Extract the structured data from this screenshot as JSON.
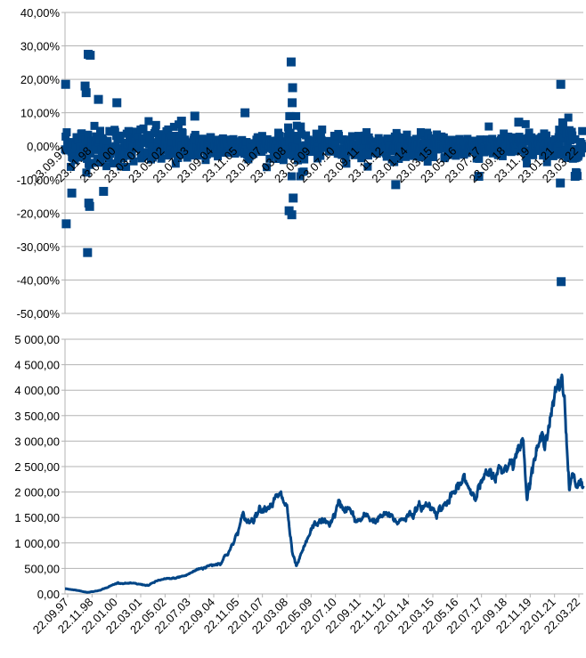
{
  "colors": {
    "series": "#004586",
    "grid": "#b3b3b3",
    "axis": "#b3b3b3",
    "text": "#000000"
  },
  "chart_data": [
    {
      "type": "scatter",
      "title": "",
      "xlabel": "",
      "ylabel": "",
      "ylim": [
        -0.5,
        0.4
      ],
      "grid": true,
      "legend": "none",
      "y_tick_values": [
        0.4,
        0.3,
        0.2,
        0.1,
        0.0,
        -0.1,
        -0.2,
        -0.3,
        -0.4,
        -0.5
      ],
      "y_tick_labels": [
        "40,00%",
        "30,00%",
        "20,00%",
        "10,00%",
        "0,00%",
        "-10,00%",
        "-20,00%",
        "-30,00%",
        "-40,00%",
        "-50,00%"
      ],
      "x_tick_labels": [
        "23.09.97",
        "23.11.98",
        "23.01.00",
        "23.03.01",
        "23.05.02",
        "23.07.03",
        "23.09.04",
        "23.11.05",
        "23.01.07",
        "23.03.08",
        "23.05.09",
        "23.07.10",
        "23.09.11",
        "23.11.12",
        "23.01.14",
        "23.03.15",
        "23.05.16",
        "23.07.17",
        "23.09.18",
        "23.11.19",
        "23.01.21",
        "23.03.22"
      ],
      "x_range_years": [
        1997.72,
        2023.0
      ],
      "outliers": [
        {
          "x": 1997.75,
          "y": 0.185
        },
        {
          "x": 1997.78,
          "y": -0.232
        },
        {
          "x": 1998.05,
          "y": -0.14
        },
        {
          "x": 1998.7,
          "y": 0.18
        },
        {
          "x": 1998.75,
          "y": 0.16
        },
        {
          "x": 1998.85,
          "y": 0.275
        },
        {
          "x": 1998.95,
          "y": 0.272
        },
        {
          "x": 1998.82,
          "y": -0.318
        },
        {
          "x": 1998.88,
          "y": -0.17
        },
        {
          "x": 1998.92,
          "y": -0.18
        },
        {
          "x": 1999.35,
          "y": 0.14
        },
        {
          "x": 1999.6,
          "y": -0.135
        },
        {
          "x": 2000.25,
          "y": 0.13
        },
        {
          "x": 2004.05,
          "y": 0.09
        },
        {
          "x": 2003.4,
          "y": 0.075
        },
        {
          "x": 2006.5,
          "y": 0.1
        },
        {
          "x": 2008.75,
          "y": 0.252
        },
        {
          "x": 2008.82,
          "y": 0.175
        },
        {
          "x": 2008.8,
          "y": 0.13
        },
        {
          "x": 2008.65,
          "y": -0.193
        },
        {
          "x": 2008.78,
          "y": -0.205
        },
        {
          "x": 2008.85,
          "y": -0.155
        },
        {
          "x": 2013.85,
          "y": -0.115
        },
        {
          "x": 2017.9,
          "y": -0.09
        },
        {
          "x": 2019.85,
          "y": 0.072
        },
        {
          "x": 2021.9,
          "y": 0.185
        },
        {
          "x": 2021.92,
          "y": -0.405
        },
        {
          "x": 2021.88,
          "y": -0.11
        },
        {
          "x": 2022.0,
          "y": 0.07
        },
        {
          "x": 2022.6,
          "y": -0.09
        }
      ]
    },
    {
      "type": "line",
      "title": "",
      "xlabel": "",
      "ylabel": "",
      "ylim": [
        0,
        5000
      ],
      "grid": true,
      "legend": "none",
      "y_tick_values": [
        5000,
        4500,
        4000,
        3500,
        3000,
        2500,
        2000,
        1500,
        1000,
        500,
        0
      ],
      "y_tick_labels": [
        "5 000,00",
        "4 500,00",
        "4 000,00",
        "3 500,00",
        "3 000,00",
        "2 500,00",
        "2 000,00",
        "1 500,00",
        "1 000,00",
        "500,00",
        "0,00"
      ],
      "x_tick_labels": [
        "22.09.97",
        "22.11.98",
        "22.01.00",
        "22.03.01",
        "22.05.02",
        "22.07.03",
        "22.09.04",
        "22.11.05",
        "22.01.07",
        "22.03.08",
        "22.05.09",
        "22.07.10",
        "22.09.11",
        "22.11.12",
        "22.01.14",
        "22.03.15",
        "22.05.16",
        "22.07.17",
        "22.09.18",
        "22.11.19",
        "22.01.21",
        "22.03.22"
      ],
      "x_range_years": [
        1997.72,
        2023.0
      ],
      "anchors": [
        {
          "x": 1997.72,
          "y": 100
        },
        {
          "x": 1998.2,
          "y": 80
        },
        {
          "x": 1998.8,
          "y": 30
        },
        {
          "x": 1999.3,
          "y": 60
        },
        {
          "x": 1999.8,
          "y": 130
        },
        {
          "x": 2000.3,
          "y": 220
        },
        {
          "x": 2001.0,
          "y": 200
        },
        {
          "x": 2001.8,
          "y": 170
        },
        {
          "x": 2002.3,
          "y": 270
        },
        {
          "x": 2003.0,
          "y": 300
        },
        {
          "x": 2003.6,
          "y": 360
        },
        {
          "x": 2004.3,
          "y": 500
        },
        {
          "x": 2004.8,
          "y": 560
        },
        {
          "x": 2005.3,
          "y": 620
        },
        {
          "x": 2005.9,
          "y": 950
        },
        {
          "x": 2006.4,
          "y": 1500
        },
        {
          "x": 2006.7,
          "y": 1400
        },
        {
          "x": 2007.2,
          "y": 1700
        },
        {
          "x": 2007.8,
          "y": 1800
        },
        {
          "x": 2008.2,
          "y": 1900
        },
        {
          "x": 2008.55,
          "y": 1700
        },
        {
          "x": 2008.8,
          "y": 800
        },
        {
          "x": 2009.0,
          "y": 520
        },
        {
          "x": 2009.4,
          "y": 900
        },
        {
          "x": 2009.8,
          "y": 1300
        },
        {
          "x": 2010.2,
          "y": 1450
        },
        {
          "x": 2010.6,
          "y": 1350
        },
        {
          "x": 2011.1,
          "y": 1750
        },
        {
          "x": 2011.6,
          "y": 1650
        },
        {
          "x": 2011.9,
          "y": 1400
        },
        {
          "x": 2012.4,
          "y": 1500
        },
        {
          "x": 2012.9,
          "y": 1450
        },
        {
          "x": 2013.4,
          "y": 1550
        },
        {
          "x": 2013.9,
          "y": 1400
        },
        {
          "x": 2014.4,
          "y": 1550
        },
        {
          "x": 2014.9,
          "y": 1650
        },
        {
          "x": 2015.4,
          "y": 1750
        },
        {
          "x": 2015.9,
          "y": 1650
        },
        {
          "x": 2016.4,
          "y": 1800
        },
        {
          "x": 2016.8,
          "y": 2000
        },
        {
          "x": 2017.2,
          "y": 2250
        },
        {
          "x": 2017.6,
          "y": 2000
        },
        {
          "x": 2018.2,
          "y": 2250
        },
        {
          "x": 2018.7,
          "y": 2350
        },
        {
          "x": 2019.2,
          "y": 2500
        },
        {
          "x": 2019.7,
          "y": 2750
        },
        {
          "x": 2020.1,
          "y": 3000
        },
        {
          "x": 2020.25,
          "y": 1950
        },
        {
          "x": 2020.6,
          "y": 2700
        },
        {
          "x": 2021.0,
          "y": 3000
        },
        {
          "x": 2021.4,
          "y": 3500
        },
        {
          "x": 2021.8,
          "y": 4000
        },
        {
          "x": 2021.95,
          "y": 4250
        },
        {
          "x": 2022.1,
          "y": 3800
        },
        {
          "x": 2022.3,
          "y": 2150
        },
        {
          "x": 2022.5,
          "y": 2400
        },
        {
          "x": 2022.7,
          "y": 2000
        },
        {
          "x": 2022.85,
          "y": 2250
        },
        {
          "x": 2023.0,
          "y": 2150
        }
      ]
    }
  ]
}
